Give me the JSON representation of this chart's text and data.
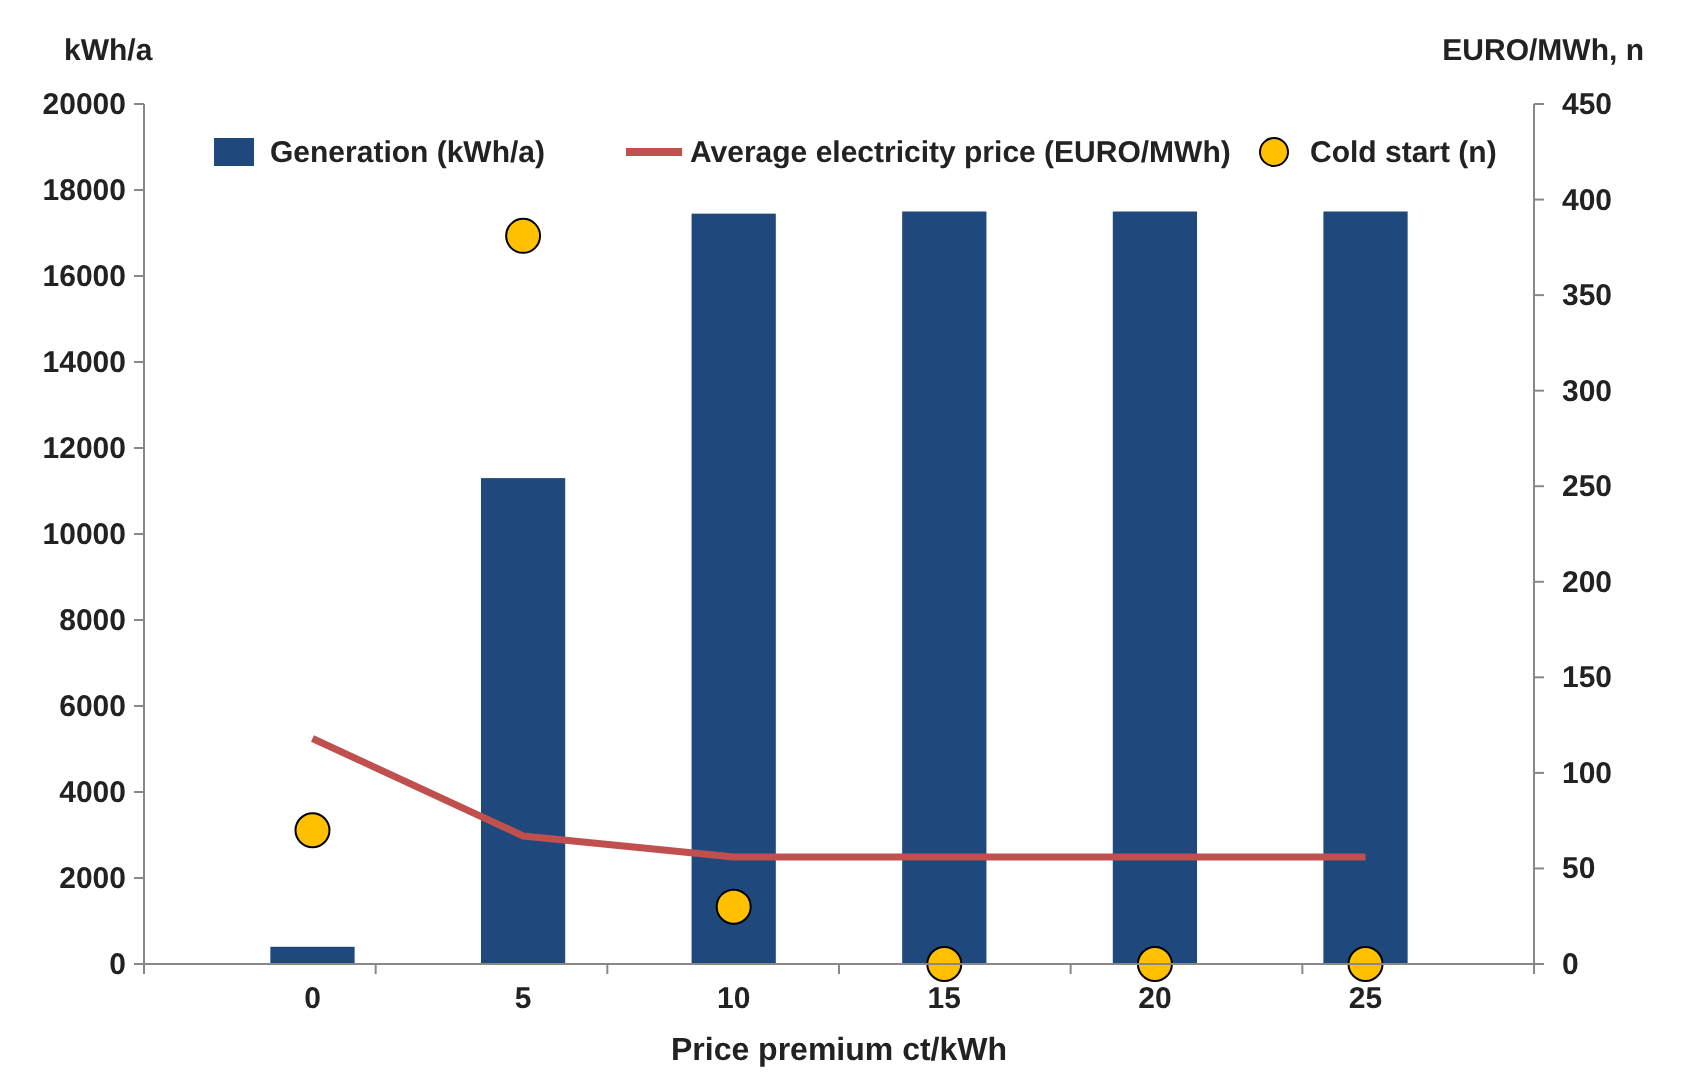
{
  "chart_data": {
    "type": "bar",
    "xlabel": "Price premium ct/kWh",
    "ylabel": "kWh/a",
    "y2label": "EURO/MWh, n",
    "categories": [
      "0",
      "5",
      "10",
      "15",
      "20",
      "25"
    ],
    "series": [
      {
        "name": "Generation (kWh/a)",
        "color": "#1f497d",
        "values": [
          400,
          11300,
          17450,
          17500,
          17500,
          17500
        ]
      },
      {
        "name": "Average electricity price (EURO/MWh)",
        "type": "line",
        "axis": "y2",
        "color": "#c0504d",
        "marker": "none",
        "values": [
          118,
          67,
          56,
          56,
          56,
          56
        ]
      },
      {
        "name": "Cold start (n)",
        "type": "scatter",
        "axis": "y2",
        "color": "#ffc000",
        "marker": "circle",
        "values": [
          70,
          381,
          30,
          0,
          0,
          0
        ]
      }
    ],
    "ylim": [
      0,
      20000
    ],
    "yticks": [
      0,
      2000,
      4000,
      6000,
      8000,
      10000,
      12000,
      14000,
      16000,
      18000,
      20000
    ],
    "y2lim": [
      0,
      450
    ],
    "y2ticks": [
      0,
      50,
      100,
      150,
      200,
      250,
      300,
      350,
      400,
      450
    ],
    "legend": "top",
    "grid": false
  }
}
